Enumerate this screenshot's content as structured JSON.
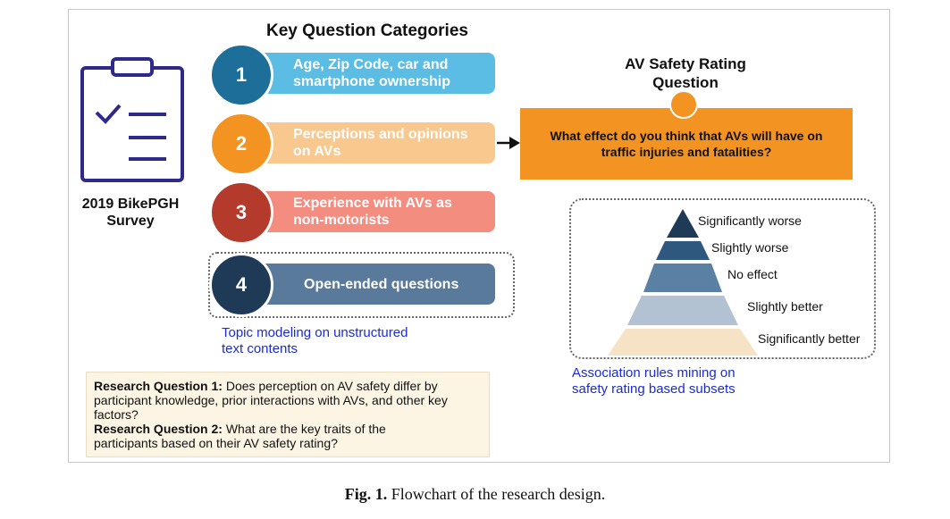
{
  "diagram": {
    "key_categories_title": "Key Question Categories",
    "survey_label_line1": "2019 BikePGH",
    "survey_label_line2": "Survey",
    "categories": [
      {
        "number": "1",
        "line1": "Age, Zip Code, car and",
        "line2": "smartphone ownership",
        "color": "#5bbde4",
        "circle_color": "#1d6e99"
      },
      {
        "number": "2",
        "line1": "Perceptions and opinions",
        "line2": "on AVs",
        "color": "#f9c88f",
        "circle_color": "#f39422"
      },
      {
        "number": "3",
        "line1": "Experience with AVs as",
        "line2": "non-motorists",
        "color": "#f28d80",
        "circle_color": "#b43a2c"
      },
      {
        "number": "4",
        "line1": "Open-ended questions",
        "line2": "",
        "color": "#5a7a9b",
        "circle_color": "#1f3a57"
      }
    ],
    "topic_modeling_line1": "Topic modeling on unstructured",
    "topic_modeling_line2": "text contents",
    "av_title_line1": "AV Safety Rating",
    "av_title_line2": "Question",
    "av_question_line1": "What effect do you think that AVs will have on",
    "av_question_line2": "traffic injuries and fatalities?",
    "ratings": [
      {
        "label": "Significantly worse",
        "color": "#1f3a57"
      },
      {
        "label": "Slightly worse",
        "color": "#2f587e"
      },
      {
        "label": "No effect",
        "color": "#5a80a4"
      },
      {
        "label": "Slightly better",
        "color": "#b2c2d3"
      },
      {
        "label": "Significantly better",
        "color": "#f6e2c4"
      }
    ],
    "association_line1": "Association rules mining on",
    "association_line2": "safety rating based subsets",
    "rq1_label": "Research Question 1:",
    "rq1_text_a": " Does perception on AV safety differ by",
    "rq1_text_b": "participant knowledge, prior interactions with AVs, and other key",
    "rq1_text_c": "factors?",
    "rq2_label": "Research Question 2:",
    "rq2_text_a": " What are the key traits of the",
    "rq2_text_b": "participants based on their AV safety rating?"
  },
  "caption": {
    "label": "Fig. 1.",
    "text": " Flowchart of the research design."
  }
}
